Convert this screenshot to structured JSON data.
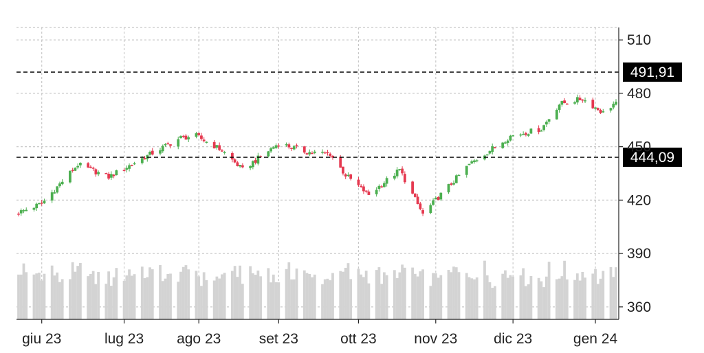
{
  "chart_data": {
    "type": "candlestick",
    "y_axis": {
      "ticks": [
        "510",
        "480",
        "450",
        "420",
        "390",
        "360"
      ],
      "tick_values": [
        510,
        480,
        450,
        420,
        390,
        360
      ],
      "range": [
        353,
        517
      ],
      "position": "right"
    },
    "x_axis": {
      "ticks": [
        "giu 23",
        "lug 23",
        "ago 23",
        "set 23",
        "ott 23",
        "nov 23",
        "dic 23",
        "gen 24"
      ],
      "tick_dates": [
        "2023-06-01",
        "2023-07-03",
        "2023-08-01",
        "2023-09-01",
        "2023-10-02",
        "2023-11-01",
        "2023-12-01",
        "2024-01-02"
      ],
      "range": [
        "2023-05-23",
        "2024-01-10"
      ]
    },
    "grid": true,
    "levels": [
      {
        "label": "491,91",
        "value": 491.91,
        "style": "dashed"
      },
      {
        "label": "444,09",
        "value": 444.09,
        "style": "dashed"
      }
    ],
    "colors": {
      "up": "#4caf50",
      "down": "#e53950",
      "volume": "#d3d3d3",
      "grid": "#c8c8c8",
      "level": "#000000",
      "label_bg": "#000000"
    },
    "key_closes": [
      {
        "date": "2023-05-23",
        "close": 413
      },
      {
        "date": "2023-06-01",
        "close": 418
      },
      {
        "date": "2023-06-15",
        "close": 440
      },
      {
        "date": "2023-06-27",
        "close": 433
      },
      {
        "date": "2023-07-07",
        "close": 441
      },
      {
        "date": "2023-07-25",
        "close": 455
      },
      {
        "date": "2023-07-31",
        "close": 456
      },
      {
        "date": "2023-08-10",
        "close": 448
      },
      {
        "date": "2023-08-18",
        "close": 437
      },
      {
        "date": "2023-09-01",
        "close": 452
      },
      {
        "date": "2023-09-12",
        "close": 447
      },
      {
        "date": "2023-09-21",
        "close": 446
      },
      {
        "date": "2023-09-27",
        "close": 434
      },
      {
        "date": "2023-10-06",
        "close": 423
      },
      {
        "date": "2023-10-18",
        "close": 437
      },
      {
        "date": "2023-10-27",
        "close": 412
      },
      {
        "date": "2023-11-01",
        "close": 420
      },
      {
        "date": "2023-11-14",
        "close": 440
      },
      {
        "date": "2023-11-30",
        "close": 456
      },
      {
        "date": "2023-12-12",
        "close": 460
      },
      {
        "date": "2023-12-19",
        "close": 474
      },
      {
        "date": "2023-12-28",
        "close": 477
      },
      {
        "date": "2024-01-05",
        "close": 469
      },
      {
        "date": "2024-01-09",
        "close": 474
      }
    ],
    "volume_profile": [
      0.62,
      0.7,
      0.74,
      0.55,
      0.6,
      0.62,
      0.64,
      0.66,
      0.58,
      0.78,
      0.62,
      0.5,
      0.48,
      0.52,
      0.6,
      0.7,
      0.58,
      0.66,
      0.74,
      0.76,
      0.56,
      0.5,
      0.48,
      0.55,
      0.52,
      0.5,
      0.46,
      0.6,
      0.74,
      0.5
    ]
  }
}
